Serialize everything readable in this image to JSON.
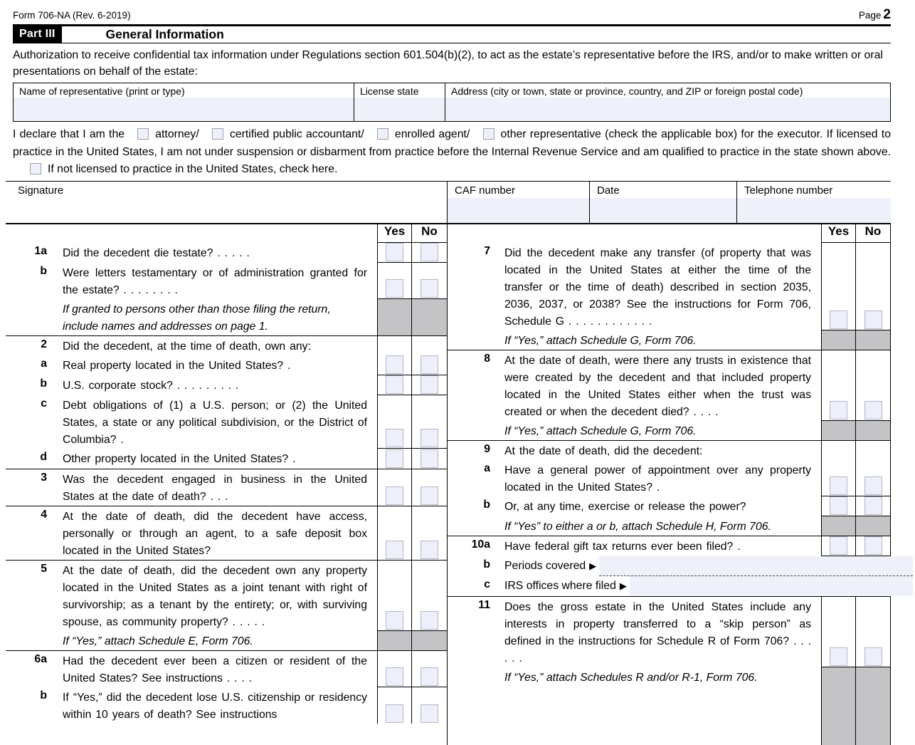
{
  "page": {
    "form_id": "Form 706-NA (Rev. 6-2019)",
    "page_label": "Page",
    "page_number": "2"
  },
  "part": {
    "label": "Part III",
    "title": "General Information"
  },
  "auth_text": "Authorization to receive confidential tax information under Regulations section 601.504(b)(2), to act as the estate’s representative before the IRS, and/or to make written or oral presentations on behalf of the estate:",
  "rep_table": {
    "name_header": "Name of representative (print or type)",
    "license_header": "License state",
    "address_header": "Address (city or town, state or province, country, and ZIP or foreign postal code)",
    "name_value": "",
    "license_value": "",
    "address_value": ""
  },
  "declaration": {
    "lead": "I declare that I am the",
    "options": [
      "attorney/",
      "certified public accountant/",
      "enrolled agent/",
      "other representative"
    ],
    "after_options": "(check the applicable box) for the executor. If licensed to practice in the United States, I am not under suspension or disbarment from practice before the Internal Revenue Service and am qualified to practice in the state shown above.",
    "not_licensed": "If not licensed to practice in the United States, check here."
  },
  "signature_row": {
    "signature_label": "Signature",
    "caf_label": "CAF number",
    "date_label": "Date",
    "phone_label": "Telephone number",
    "signature_value": "",
    "caf_value": "",
    "date_value": "",
    "phone_value": ""
  },
  "questions": {
    "header": {
      "yes": "Yes",
      "no": "No"
    },
    "left": [
      {
        "rows": [
          {
            "id": "1a",
            "num": "1a",
            "text": "Did the decedent die testate? . . . . .",
            "cb": true
          },
          {
            "id": "1b",
            "num": "b",
            "text": "Were letters testamentary or of administration granted for the estate? . . . . . . . .",
            "cb": true
          },
          {
            "note": "If granted to persons other than those filing the return, include names and addresses on page 1."
          }
        ]
      },
      {
        "rows": [
          {
            "id": "2",
            "num": "2",
            "text": "Did the decedent, at the time of death, own any:"
          },
          {
            "id": "2a",
            "num": "a",
            "text": "Real property located in the United States? .",
            "cb": true
          },
          {
            "id": "2b",
            "num": "b",
            "text": "U.S. corporate stock? . . . . . . . . .",
            "cb": true
          },
          {
            "id": "2c",
            "num": "c",
            "text": "Debt obligations of (1) a U.S. person; or (2) the United States, a state or any political subdivision, or the District of Columbia? .",
            "cb": true
          },
          {
            "id": "2d",
            "num": "d",
            "text": "Other property located in the United States? .",
            "cb": true
          }
        ]
      },
      {
        "rows": [
          {
            "id": "3",
            "num": "3",
            "text": "Was the decedent engaged in business in the United States at the date of death? . . .",
            "cb": true
          }
        ]
      },
      {
        "rows": [
          {
            "id": "4",
            "num": "4",
            "text": "At the date of death, did the decedent have access, personally or through an agent, to a safe deposit box located in the United States?",
            "cb": true
          }
        ]
      },
      {
        "rows": [
          {
            "id": "5",
            "num": "5",
            "text": "At the date of death, did the decedent own any property located in the United States as a joint tenant with right of survivorship; as a tenant by the entirety; or, with surviving spouse, as community property? . . . . .",
            "cb": true
          },
          {
            "note": "If “Yes,” attach Schedule E, Form 706."
          }
        ]
      },
      {
        "rows": [
          {
            "id": "6a",
            "num": "6a",
            "text": "Had the decedent ever been a citizen or resident of the United States? See instructions . . . .",
            "cb": true
          },
          {
            "id": "6b",
            "num": "b",
            "text": "If “Yes,” did the decedent lose U.S. citizenship or residency within 10 years of death? See instructions",
            "cb": true
          }
        ]
      }
    ],
    "right": [
      {
        "rows": [
          {
            "id": "7",
            "num": "7",
            "text": "Did the decedent make any transfer (of property that was located in the United States at either the time of the transfer or the time of death) described in section 2035, 2036, 2037, or 2038? See the instructions for Form 706, Schedule G . . . . . . . . . . . .",
            "cb": true
          },
          {
            "note": "If “Yes,” attach Schedule G, Form 706."
          }
        ]
      },
      {
        "rows": [
          {
            "id": "8",
            "num": "8",
            "text": "At the date of death, were there any trusts in existence that were created by the decedent and that included property located in the United States either when the trust was created or when the decedent died? . . . .",
            "cb": true
          },
          {
            "note": "If “Yes,” attach Schedule G, Form 706."
          }
        ]
      },
      {
        "rows": [
          {
            "id": "9",
            "num": "9",
            "text": "At the date of death, did the decedent:"
          },
          {
            "id": "9a",
            "num": "a",
            "text": "Have a general power of appointment over any property located in the United States? .",
            "cb": true
          },
          {
            "id": "9b",
            "num": "b",
            "text": "Or, at any time, exercise or release the power?",
            "cb": true
          },
          {
            "note": "If “Yes” to either a or b, attach Schedule H, Form 706."
          }
        ]
      },
      {
        "rows": [
          {
            "id": "10a",
            "num": "10a",
            "text": "Have federal gift tax returns ever been filed? .",
            "cb": true
          },
          {
            "id": "10b",
            "num": "b",
            "label": "Periods covered",
            "field": true,
            "dashed": true,
            "value": ""
          },
          {
            "id": "10c",
            "num": "c",
            "label": "IRS offices where filed",
            "field": true,
            "dashed": false,
            "value": ""
          }
        ]
      },
      {
        "rows": [
          {
            "id": "11",
            "num": "11",
            "text": "Does the gross estate in the United States include any interests in property transferred to a “skip person” as defined in the instructions for Schedule R of Form 706? . . . . . .",
            "cb": true
          },
          {
            "note": "If “Yes,” attach Schedules R and/or R-1, Form 706."
          }
        ]
      }
    ]
  }
}
